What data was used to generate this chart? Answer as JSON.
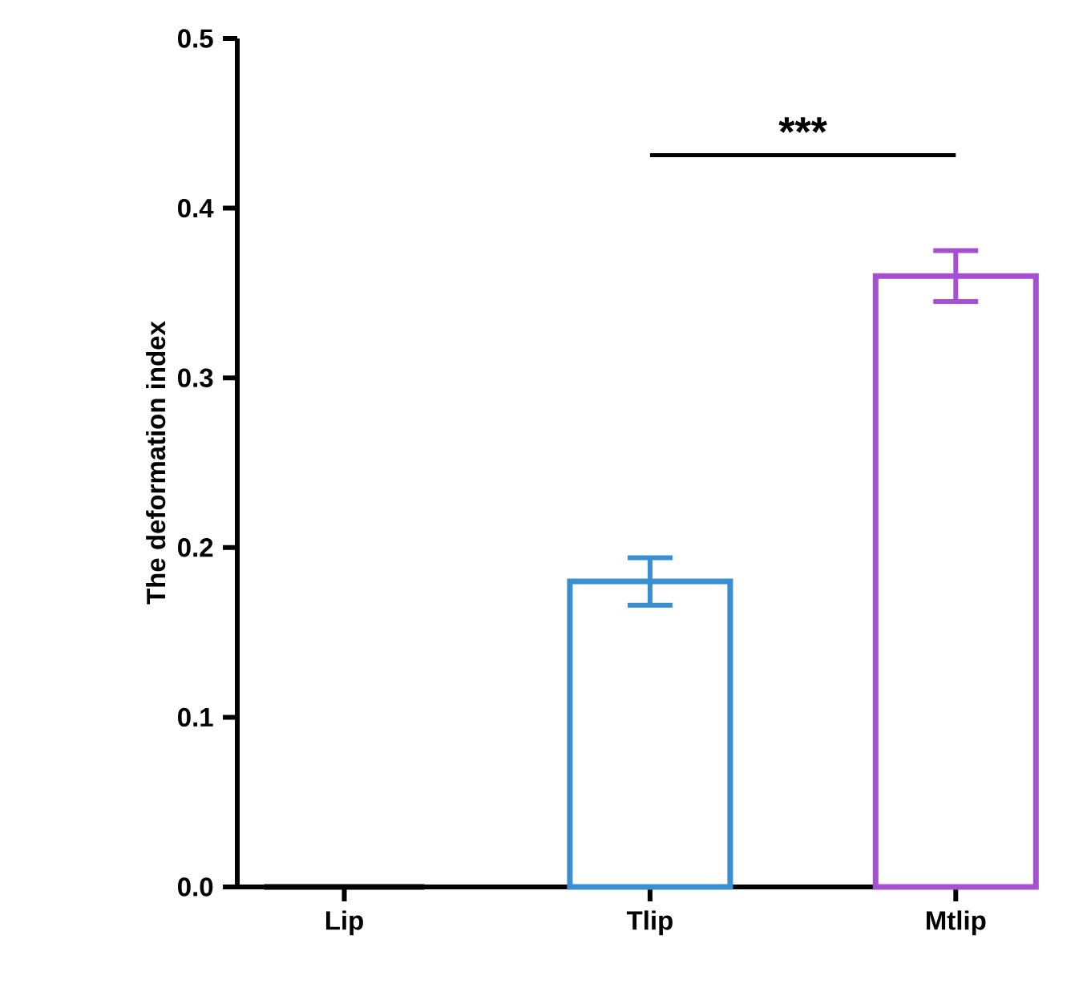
{
  "chart_data": {
    "type": "bar",
    "ylabel": "The deformation index",
    "categories": [
      "Lip",
      "Tlip",
      "Mtlip"
    ],
    "values": [
      0,
      0.18,
      0.36
    ],
    "errors": [
      null,
      0.014,
      0.015
    ],
    "colors": [
      "#000000",
      "#3a8fd0",
      "#a64fd2"
    ],
    "ylim": [
      0,
      0.5
    ],
    "yticks": [
      {
        "value": 0,
        "label": "0.0"
      },
      0.1,
      0.2,
      0.3,
      0.4,
      0.5
    ],
    "annotations": [
      "***"
    ]
  }
}
